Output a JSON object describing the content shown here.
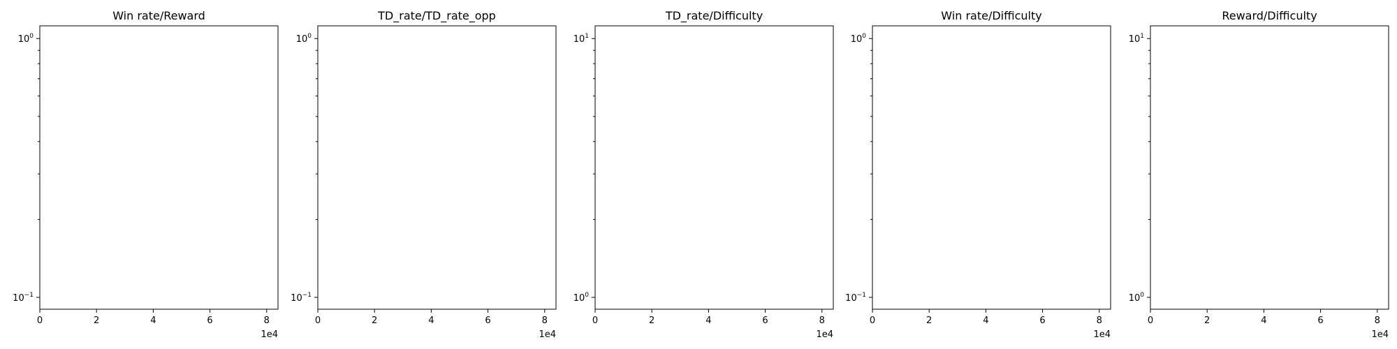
{
  "chart_data": [
    {
      "type": "line",
      "title": "Win rate/Reward",
      "xlabel": "",
      "ylabel": "",
      "x_tick_labels": [
        "0",
        "2",
        "4",
        "6",
        "8"
      ],
      "x_offset_label": "1e4",
      "xlim": [
        0,
        84000
      ],
      "y_scale": "log",
      "ylim": [
        0.09,
        1.12
      ],
      "y_major_ticks": [
        {
          "value": 0.1,
          "base": "10",
          "exp": "−1"
        },
        {
          "value": 1,
          "base": "10",
          "exp": "0"
        }
      ],
      "y_minor_ticks": [
        0.2,
        0.3,
        0.4,
        0.5,
        0.6,
        0.7,
        0.8,
        0.9
      ],
      "series": []
    },
    {
      "type": "line",
      "title": "TD_rate/TD_rate_opp",
      "xlabel": "",
      "ylabel": "",
      "x_tick_labels": [
        "0",
        "2",
        "4",
        "6",
        "8"
      ],
      "x_offset_label": "1e4",
      "xlim": [
        0,
        84000
      ],
      "y_scale": "log",
      "ylim": [
        0.09,
        1.12
      ],
      "y_major_ticks": [
        {
          "value": 0.1,
          "base": "10",
          "exp": "−1"
        },
        {
          "value": 1,
          "base": "10",
          "exp": "0"
        }
      ],
      "y_minor_ticks": [
        0.2,
        0.3,
        0.4,
        0.5,
        0.6,
        0.7,
        0.8,
        0.9
      ],
      "series": []
    },
    {
      "type": "line",
      "title": "TD_rate/Difficulty",
      "xlabel": "",
      "ylabel": "",
      "x_tick_labels": [
        "0",
        "2",
        "4",
        "6",
        "8"
      ],
      "x_offset_label": "1e4",
      "xlim": [
        0,
        84000
      ],
      "y_scale": "log",
      "ylim": [
        0.9,
        11.2
      ],
      "y_major_ticks": [
        {
          "value": 1,
          "base": "10",
          "exp": "0"
        },
        {
          "value": 10,
          "base": "10",
          "exp": "1"
        }
      ],
      "y_minor_ticks": [
        2,
        3,
        4,
        5,
        6,
        7,
        8,
        9
      ],
      "series": []
    },
    {
      "type": "line",
      "title": "Win rate/Difficulty",
      "xlabel": "",
      "ylabel": "",
      "x_tick_labels": [
        "0",
        "2",
        "4",
        "6",
        "8"
      ],
      "x_offset_label": "1e4",
      "xlim": [
        0,
        84000
      ],
      "y_scale": "log",
      "ylim": [
        0.09,
        1.12
      ],
      "y_major_ticks": [
        {
          "value": 0.1,
          "base": "10",
          "exp": "−1"
        },
        {
          "value": 1,
          "base": "10",
          "exp": "0"
        }
      ],
      "y_minor_ticks": [
        0.2,
        0.3,
        0.4,
        0.5,
        0.6,
        0.7,
        0.8,
        0.9
      ],
      "series": []
    },
    {
      "type": "line",
      "title": "Reward/Difficulty",
      "xlabel": "",
      "ylabel": "",
      "x_tick_labels": [
        "0",
        "2",
        "4",
        "6",
        "8"
      ],
      "x_offset_label": "1e4",
      "xlim": [
        0,
        84000
      ],
      "y_scale": "log",
      "ylim": [
        0.9,
        11.2
      ],
      "y_major_ticks": [
        {
          "value": 1,
          "base": "10",
          "exp": "0"
        },
        {
          "value": 10,
          "base": "10",
          "exp": "1"
        }
      ],
      "y_minor_ticks": [
        2,
        3,
        4,
        5,
        6,
        7,
        8,
        9
      ],
      "series": []
    }
  ]
}
